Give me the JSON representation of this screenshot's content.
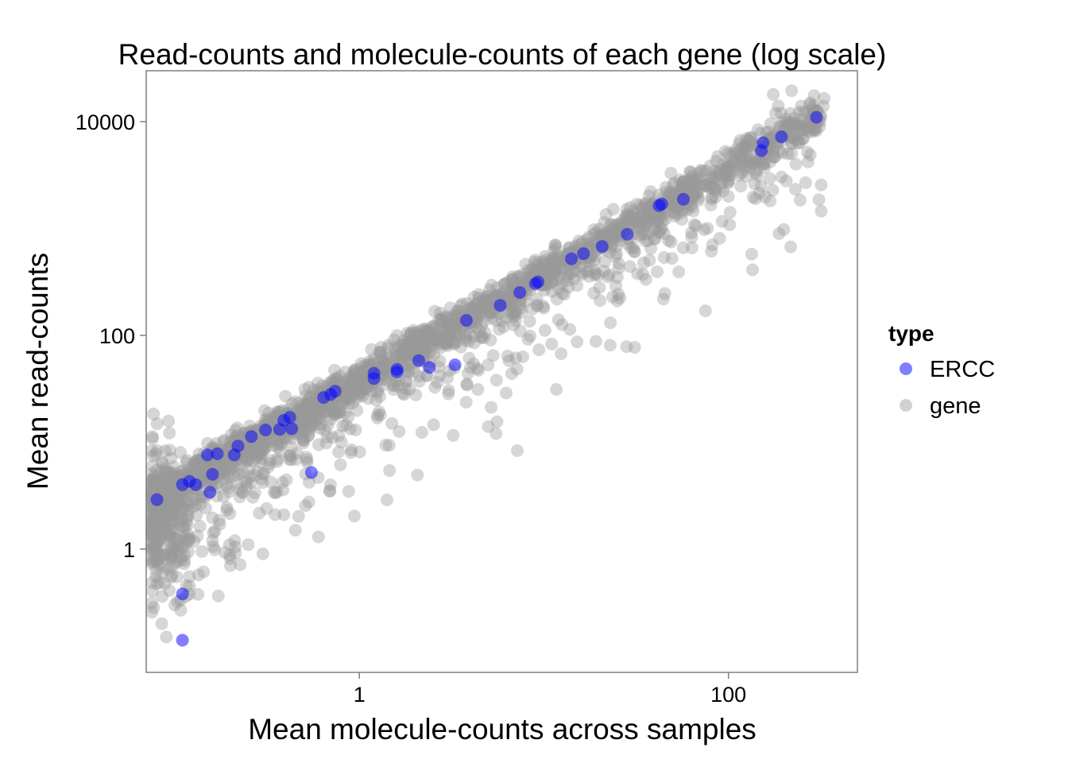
{
  "chart_data": {
    "type": "scatter",
    "title": "Read-counts and molecule-counts of each gene (log scale)",
    "xlabel": "Mean molecule-counts across samples",
    "ylabel": "Mean read-counts",
    "x_scale": "log10",
    "y_scale": "log10",
    "xlim": [
      0.07,
      500
    ],
    "ylim": [
      0.07,
      30000
    ],
    "x_ticks": [
      {
        "value": 1,
        "label": "1"
      },
      {
        "value": 100,
        "label": "100"
      }
    ],
    "y_ticks": [
      {
        "value": 1,
        "label": "1"
      },
      {
        "value": 100,
        "label": "100"
      },
      {
        "value": 10000,
        "label": "10000"
      }
    ],
    "grid": false,
    "legend": {
      "title": "type",
      "position": "right",
      "entries": [
        {
          "label": "ERCC",
          "color": "#0000ff"
        },
        {
          "label": "gene",
          "color": "#999999"
        }
      ]
    },
    "series": [
      {
        "name": "ERCC",
        "color": "#0000ff",
        "opacity": 0.5,
        "points": [
          [
            0.08,
            2.9
          ],
          [
            0.11,
            4.0
          ],
          [
            0.12,
            4.3
          ],
          [
            0.13,
            4.0
          ],
          [
            0.15,
            7.6
          ],
          [
            0.155,
            3.4
          ],
          [
            0.16,
            5.0
          ],
          [
            0.17,
            7.8
          ],
          [
            0.21,
            7.6
          ],
          [
            0.22,
            9.2
          ],
          [
            0.26,
            11.3
          ],
          [
            0.31,
            13.0
          ],
          [
            0.37,
            13.2
          ],
          [
            0.39,
            16.0
          ],
          [
            0.42,
            17.1
          ],
          [
            0.43,
            13.4
          ],
          [
            0.55,
            5.2
          ],
          [
            0.64,
            26.2
          ],
          [
            0.7,
            28.0
          ],
          [
            0.74,
            30.0
          ],
          [
            1.2,
            39.5
          ],
          [
            1.2,
            44.2
          ],
          [
            1.6,
            45.5
          ],
          [
            1.6,
            48.2
          ],
          [
            2.1,
            58.0
          ],
          [
            2.4,
            50.0
          ],
          [
            3.3,
            53.0
          ],
          [
            3.8,
            138.0
          ],
          [
            5.8,
            191.0
          ],
          [
            7.4,
            252.0
          ],
          [
            9.0,
            305.0
          ],
          [
            9.3,
            317.0
          ],
          [
            14.1,
            521.0
          ],
          [
            16.4,
            582.0
          ],
          [
            20.7,
            680.0
          ],
          [
            28.3,
            885.0
          ],
          [
            42.1,
            1640.0
          ],
          [
            43.5,
            1700.0
          ],
          [
            57.0,
            1880.0
          ],
          [
            151.0,
            5350.0
          ],
          [
            154.0,
            6350.0
          ],
          [
            194.0,
            7200.0
          ],
          [
            300.0,
            11000.0
          ],
          [
            0.11,
            0.38
          ],
          [
            0.11,
            0.14
          ]
        ]
      },
      {
        "name": "gene",
        "color": "#999999",
        "opacity": 0.4,
        "model": {
          "x_range": [
            0.075,
            330
          ],
          "read_per_molecule": 38,
          "low_end_floor": 2.5,
          "count": 2600
        },
        "points": [
          [
            175,
            18000
          ],
          [
            220,
            19500
          ],
          [
            330,
            16500
          ],
          [
            180,
            12000
          ],
          [
            270,
            8500
          ],
          [
            210,
            5000
          ],
          [
            150,
            2500
          ],
          [
            100,
            2000
          ],
          [
            60,
            1500
          ],
          [
            40,
            800
          ],
          [
            38,
            650
          ],
          [
            25,
            350
          ],
          [
            20,
            280
          ],
          [
            12,
            140
          ],
          [
            25,
            210
          ],
          [
            6,
            210
          ],
          [
            10,
            180
          ],
          [
            4,
            50
          ],
          [
            3,
            40
          ],
          [
            1.5,
            15
          ],
          [
            1.3,
            18
          ],
          [
            0.8,
            10
          ],
          [
            0.9,
            8
          ],
          [
            5,
            14
          ],
          [
            0.6,
            1.3
          ],
          [
            0.45,
            1.5
          ],
          [
            0.35,
            2.1
          ],
          [
            0.3,
            0.9
          ],
          [
            0.25,
            1.1
          ],
          [
            0.2,
            0.7
          ],
          [
            0.16,
            1.2
          ],
          [
            0.12,
            0.45
          ],
          [
            0.1,
            0.3
          ],
          [
            0.085,
            0.2
          ],
          [
            0.09,
            0.15
          ]
        ]
      }
    ]
  }
}
